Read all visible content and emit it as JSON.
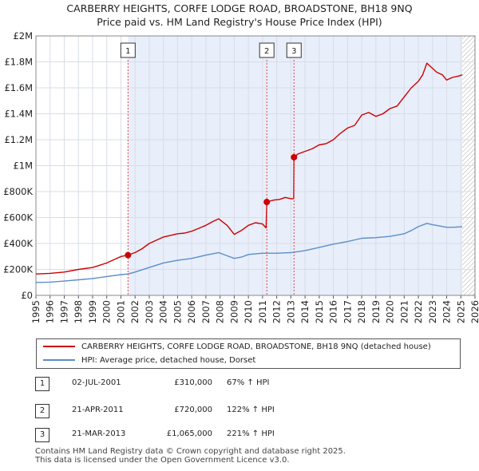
{
  "title_line1": "CARBERRY HEIGHTS, CORFE LODGE ROAD, BROADSTONE, BH18 9NQ",
  "title_line2": "Price paid vs. HM Land Registry's House Price Index (HPI)",
  "colors": {
    "property": "#cc0000",
    "hpi": "#5b8ec9",
    "shade": "#e8eefa",
    "grid": "#d8dde8",
    "marker_line": "#dd4444",
    "hatch": "#999999"
  },
  "chart_data": {
    "type": "line",
    "ylim": [
      0,
      2000000
    ],
    "xlim": [
      1995,
      2026
    ],
    "y_ticks": [
      {
        "value": 0,
        "label": "£0"
      },
      {
        "value": 200000,
        "label": "£200K"
      },
      {
        "value": 400000,
        "label": "£400K"
      },
      {
        "value": 600000,
        "label": "£600K"
      },
      {
        "value": 800000,
        "label": "£800K"
      },
      {
        "value": 1000000,
        "label": "£1M"
      },
      {
        "value": 1200000,
        "label": "£1.2M"
      },
      {
        "value": 1400000,
        "label": "£1.4M"
      },
      {
        "value": 1600000,
        "label": "£1.6M"
      },
      {
        "value": 1800000,
        "label": "£1.8M"
      },
      {
        "value": 2000000,
        "label": "£2M"
      }
    ],
    "x_ticks": [
      "1995",
      "1996",
      "1997",
      "1998",
      "1999",
      "2000",
      "2001",
      "2002",
      "2003",
      "2004",
      "2005",
      "2006",
      "2007",
      "2008",
      "2009",
      "2010",
      "2011",
      "2012",
      "2013",
      "2014",
      "2015",
      "2016",
      "2017",
      "2018",
      "2019",
      "2020",
      "2021",
      "2022",
      "2023",
      "2024",
      "2025",
      "2026"
    ],
    "shaded_from": 2001.5,
    "hatch_from": 2025.1,
    "series": [
      {
        "name": "CARBERRY HEIGHTS, CORFE LODGE ROAD, BROADSTONE, BH18 9NQ (detached house)",
        "color": "#cc0000",
        "points": [
          [
            1995.0,
            165000
          ],
          [
            1996.0,
            170000
          ],
          [
            1997.0,
            180000
          ],
          [
            1998.0,
            200000
          ],
          [
            1999.0,
            215000
          ],
          [
            2000.0,
            250000
          ],
          [
            2000.7,
            285000
          ],
          [
            2001.0,
            300000
          ],
          [
            2001.5,
            310000
          ],
          [
            2002.0,
            330000
          ],
          [
            2002.5,
            360000
          ],
          [
            2003.0,
            400000
          ],
          [
            2004.0,
            450000
          ],
          [
            2005.0,
            475000
          ],
          [
            2005.5,
            480000
          ],
          [
            2006.0,
            495000
          ],
          [
            2007.0,
            540000
          ],
          [
            2007.5,
            570000
          ],
          [
            2007.9,
            590000
          ],
          [
            2008.5,
            540000
          ],
          [
            2009.0,
            470000
          ],
          [
            2009.5,
            500000
          ],
          [
            2010.0,
            540000
          ],
          [
            2010.5,
            560000
          ],
          [
            2011.0,
            550000
          ],
          [
            2011.25,
            520000
          ],
          [
            2011.3,
            720000
          ],
          [
            2011.8,
            735000
          ],
          [
            2012.2,
            740000
          ],
          [
            2012.6,
            755000
          ],
          [
            2013.0,
            745000
          ],
          [
            2013.2,
            745000
          ],
          [
            2013.22,
            1065000
          ],
          [
            2013.5,
            1090000
          ],
          [
            2014.0,
            1110000
          ],
          [
            2014.5,
            1130000
          ],
          [
            2015.0,
            1160000
          ],
          [
            2015.5,
            1170000
          ],
          [
            2016.0,
            1200000
          ],
          [
            2016.5,
            1250000
          ],
          [
            2017.0,
            1290000
          ],
          [
            2017.5,
            1310000
          ],
          [
            2018.0,
            1390000
          ],
          [
            2018.5,
            1410000
          ],
          [
            2019.0,
            1380000
          ],
          [
            2019.5,
            1400000
          ],
          [
            2020.0,
            1440000
          ],
          [
            2020.5,
            1460000
          ],
          [
            2021.0,
            1530000
          ],
          [
            2021.5,
            1600000
          ],
          [
            2022.0,
            1650000
          ],
          [
            2022.3,
            1700000
          ],
          [
            2022.6,
            1790000
          ],
          [
            2022.9,
            1760000
          ],
          [
            2023.3,
            1720000
          ],
          [
            2023.7,
            1700000
          ],
          [
            2024.0,
            1660000
          ],
          [
            2024.4,
            1680000
          ],
          [
            2024.8,
            1690000
          ],
          [
            2025.1,
            1700000
          ]
        ]
      },
      {
        "name": "HPI: Average price, detached house, Dorset",
        "color": "#5b8ec9",
        "points": [
          [
            1995.0,
            100000
          ],
          [
            1996.0,
            102000
          ],
          [
            1997.0,
            110000
          ],
          [
            1998.0,
            120000
          ],
          [
            1999.0,
            130000
          ],
          [
            2000.0,
            145000
          ],
          [
            2001.0,
            160000
          ],
          [
            2001.5,
            165000
          ],
          [
            2002.0,
            180000
          ],
          [
            2003.0,
            215000
          ],
          [
            2004.0,
            250000
          ],
          [
            2005.0,
            270000
          ],
          [
            2006.0,
            285000
          ],
          [
            2007.0,
            310000
          ],
          [
            2007.9,
            330000
          ],
          [
            2008.5,
            305000
          ],
          [
            2009.0,
            285000
          ],
          [
            2009.5,
            295000
          ],
          [
            2010.0,
            315000
          ],
          [
            2011.0,
            325000
          ],
          [
            2012.0,
            325000
          ],
          [
            2013.0,
            330000
          ],
          [
            2014.0,
            345000
          ],
          [
            2015.0,
            370000
          ],
          [
            2016.0,
            395000
          ],
          [
            2017.0,
            415000
          ],
          [
            2018.0,
            440000
          ],
          [
            2019.0,
            445000
          ],
          [
            2020.0,
            455000
          ],
          [
            2021.0,
            475000
          ],
          [
            2021.5,
            500000
          ],
          [
            2022.0,
            530000
          ],
          [
            2022.6,
            555000
          ],
          [
            2023.0,
            545000
          ],
          [
            2023.5,
            535000
          ],
          [
            2024.0,
            525000
          ],
          [
            2024.5,
            525000
          ],
          [
            2025.1,
            530000
          ]
        ]
      }
    ],
    "sales": [
      {
        "label": "1",
        "x": 2001.5,
        "value": 310000
      },
      {
        "label": "2",
        "x": 2011.3,
        "value": 720000
      },
      {
        "label": "3",
        "x": 2013.22,
        "value": 1065000
      }
    ]
  },
  "legend": {
    "property_label": "CARBERRY HEIGHTS, CORFE LODGE ROAD, BROADSTONE, BH18 9NQ (detached house)",
    "hpi_label": "HPI: Average price, detached house, Dorset"
  },
  "sales_table": [
    {
      "num": "1",
      "date": "02-JUL-2001",
      "price": "£310,000",
      "hpi": "67% ↑ HPI"
    },
    {
      "num": "2",
      "date": "21-APR-2011",
      "price": "£720,000",
      "hpi": "122% ↑ HPI"
    },
    {
      "num": "3",
      "date": "21-MAR-2013",
      "price": "£1,065,000",
      "hpi": "221% ↑ HPI"
    }
  ],
  "footer": {
    "line1": "Contains HM Land Registry data © Crown copyright and database right 2025.",
    "line2": "This data is licensed under the Open Government Licence v3.0."
  }
}
